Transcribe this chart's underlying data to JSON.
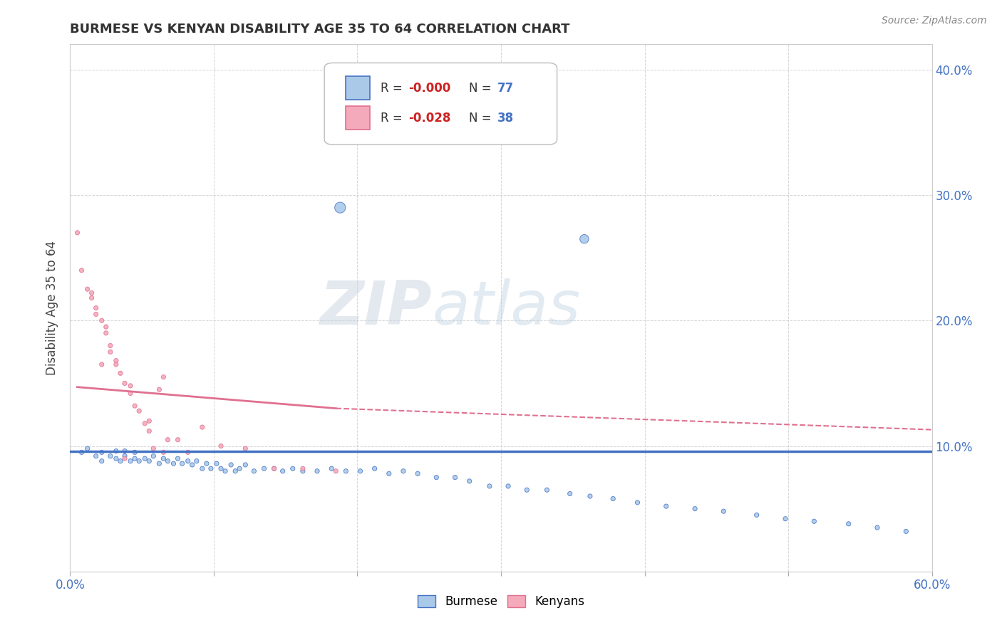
{
  "title": "BURMESE VS KENYAN DISABILITY AGE 35 TO 64 CORRELATION CHART",
  "source": "Source: ZipAtlas.com",
  "ylabel": "Disability Age 35 to 64",
  "xlim": [
    0.0,
    0.6
  ],
  "ylim": [
    0.0,
    0.42
  ],
  "xticks": [
    0.0,
    0.1,
    0.2,
    0.3,
    0.4,
    0.5,
    0.6
  ],
  "xticklabels": [
    "0.0%",
    "",
    "",
    "",
    "",
    "",
    "60.0%"
  ],
  "yticks": [
    0.0,
    0.1,
    0.2,
    0.3,
    0.4
  ],
  "yticklabels": [
    "",
    "10.0%",
    "20.0%",
    "30.0%",
    "40.0%"
  ],
  "burmese_color": "#aac9e8",
  "kenyan_color": "#f4aabb",
  "burmese_line_color": "#4472c4",
  "kenyan_line_color": "#e07090",
  "watermark_zip": "ZIP",
  "watermark_atlas": "atlas",
  "burmese_scatter_x": [
    0.008,
    0.012,
    0.018,
    0.022,
    0.022,
    0.028,
    0.032,
    0.032,
    0.035,
    0.038,
    0.038,
    0.042,
    0.045,
    0.045,
    0.048,
    0.052,
    0.055,
    0.058,
    0.062,
    0.065,
    0.068,
    0.072,
    0.075,
    0.078,
    0.082,
    0.085,
    0.088,
    0.092,
    0.095,
    0.098,
    0.102,
    0.105,
    0.108,
    0.112,
    0.115,
    0.118,
    0.122,
    0.128,
    0.135,
    0.142,
    0.148,
    0.155,
    0.162,
    0.172,
    0.182,
    0.192,
    0.202,
    0.212,
    0.222,
    0.232,
    0.242,
    0.255,
    0.268,
    0.278,
    0.292,
    0.305,
    0.318,
    0.332,
    0.348,
    0.362,
    0.378,
    0.395,
    0.415,
    0.435,
    0.455,
    0.478,
    0.498,
    0.518,
    0.542,
    0.562,
    0.582,
    0.188,
    0.358
  ],
  "burmese_scatter_y": [
    0.095,
    0.098,
    0.092,
    0.088,
    0.095,
    0.092,
    0.09,
    0.096,
    0.088,
    0.092,
    0.096,
    0.088,
    0.09,
    0.095,
    0.088,
    0.09,
    0.088,
    0.092,
    0.086,
    0.09,
    0.088,
    0.086,
    0.09,
    0.086,
    0.088,
    0.085,
    0.088,
    0.082,
    0.086,
    0.082,
    0.086,
    0.082,
    0.08,
    0.085,
    0.08,
    0.082,
    0.085,
    0.08,
    0.082,
    0.082,
    0.08,
    0.082,
    0.08,
    0.08,
    0.082,
    0.08,
    0.08,
    0.082,
    0.078,
    0.08,
    0.078,
    0.075,
    0.075,
    0.072,
    0.068,
    0.068,
    0.065,
    0.065,
    0.062,
    0.06,
    0.058,
    0.055,
    0.052,
    0.05,
    0.048,
    0.045,
    0.042,
    0.04,
    0.038,
    0.035,
    0.032,
    0.29,
    0.265
  ],
  "burmese_sizes": [
    20,
    20,
    20,
    20,
    20,
    20,
    20,
    20,
    20,
    20,
    20,
    20,
    20,
    20,
    20,
    20,
    20,
    20,
    20,
    20,
    20,
    20,
    20,
    20,
    20,
    20,
    20,
    20,
    20,
    20,
    20,
    20,
    20,
    20,
    20,
    20,
    20,
    20,
    20,
    20,
    20,
    20,
    20,
    20,
    20,
    20,
    20,
    20,
    20,
    20,
    20,
    20,
    20,
    20,
    20,
    20,
    20,
    20,
    20,
    20,
    20,
    20,
    20,
    20,
    20,
    20,
    20,
    20,
    20,
    20,
    20,
    120,
    80
  ],
  "kenyan_scatter_x": [
    0.005,
    0.008,
    0.012,
    0.015,
    0.018,
    0.022,
    0.025,
    0.028,
    0.032,
    0.035,
    0.038,
    0.042,
    0.045,
    0.048,
    0.052,
    0.055,
    0.058,
    0.062,
    0.065,
    0.068,
    0.075,
    0.082,
    0.092,
    0.105,
    0.122,
    0.142,
    0.162,
    0.185,
    0.025,
    0.015,
    0.018,
    0.028,
    0.032,
    0.042,
    0.055,
    0.065,
    0.038,
    0.022
  ],
  "kenyan_scatter_y": [
    0.27,
    0.24,
    0.225,
    0.218,
    0.21,
    0.2,
    0.19,
    0.18,
    0.168,
    0.158,
    0.15,
    0.142,
    0.132,
    0.128,
    0.118,
    0.112,
    0.098,
    0.145,
    0.155,
    0.105,
    0.105,
    0.095,
    0.115,
    0.1,
    0.098,
    0.082,
    0.082,
    0.08,
    0.195,
    0.222,
    0.205,
    0.175,
    0.165,
    0.148,
    0.12,
    0.095,
    0.09,
    0.165
  ],
  "kenyan_sizes": [
    20,
    20,
    20,
    20,
    20,
    20,
    20,
    20,
    20,
    20,
    20,
    20,
    20,
    20,
    20,
    20,
    20,
    20,
    20,
    20,
    20,
    20,
    20,
    20,
    20,
    20,
    20,
    20,
    20,
    20,
    20,
    20,
    20,
    20,
    20,
    20,
    20,
    20
  ],
  "burmese_trend_y_start": 0.096,
  "burmese_trend_y_end": 0.096,
  "kenyan_trend_x_solid_start": 0.005,
  "kenyan_trend_x_solid_end": 0.185,
  "kenyan_trend_y_solid_start": 0.147,
  "kenyan_trend_y_solid_end": 0.13,
  "kenyan_trend_x_dash_start": 0.185,
  "kenyan_trend_x_dash_end": 0.6,
  "kenyan_trend_y_dash_start": 0.13,
  "kenyan_trend_y_dash_end": 0.113
}
